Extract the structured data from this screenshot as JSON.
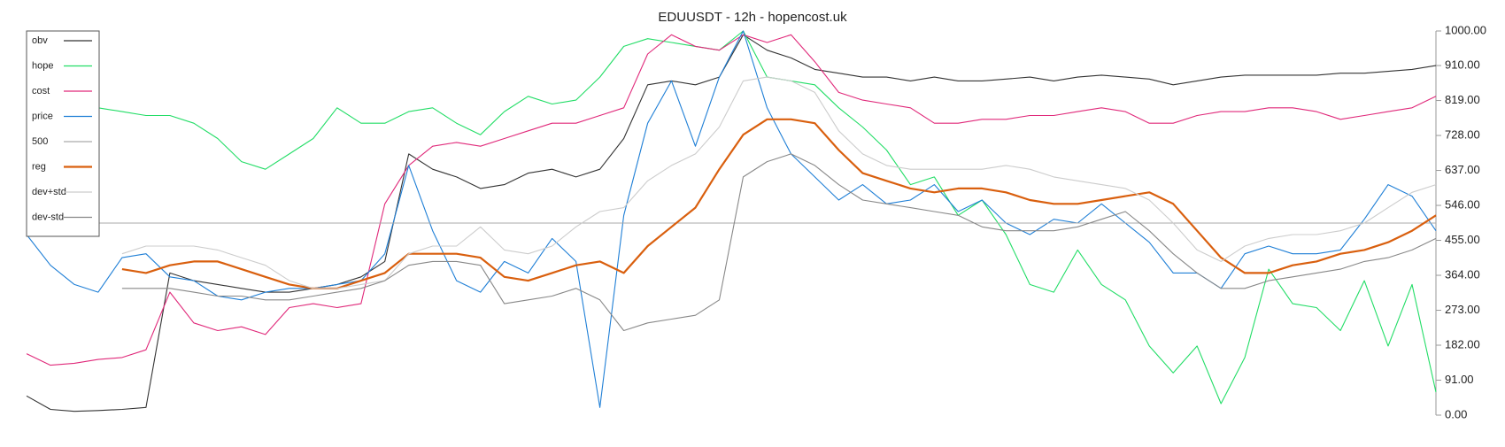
{
  "chart_data": {
    "type": "line",
    "title": "EDUUSDT - 12h - hopencost.uk",
    "ylim": [
      0,
      1000
    ],
    "yticks": [
      {
        "value": 0,
        "label": "0.00"
      },
      {
        "value": 91,
        "label": "91.00"
      },
      {
        "value": 182,
        "label": "182.00"
      },
      {
        "value": 273,
        "label": "273.00"
      },
      {
        "value": 364,
        "label": "364.00"
      },
      {
        "value": 455,
        "label": "455.00"
      },
      {
        "value": 546,
        "label": "546.00"
      },
      {
        "value": 637,
        "label": "637.00"
      },
      {
        "value": 728,
        "label": "728.00"
      },
      {
        "value": 819,
        "label": "819.00"
      },
      {
        "value": 910,
        "label": "910.00"
      },
      {
        "value": 1000,
        "label": "1000.00"
      }
    ],
    "legend": "upper left",
    "series": [
      {
        "name": "obv",
        "color": "#333333",
        "values": [
          50,
          15,
          10,
          12,
          15,
          20,
          370,
          350,
          340,
          330,
          320,
          320,
          330,
          340,
          360,
          400,
          680,
          640,
          620,
          590,
          600,
          630,
          640,
          620,
          640,
          720,
          860,
          870,
          860,
          880,
          990,
          950,
          930,
          900,
          890,
          880,
          880,
          870,
          880,
          870,
          870,
          875,
          880,
          870,
          880,
          885,
          880,
          875,
          860,
          870,
          880,
          885,
          885,
          885,
          885,
          890,
          890,
          895,
          900,
          910
        ]
      },
      {
        "name": "hope",
        "color": "#22dd66",
        "values": [
          null,
          null,
          null,
          800,
          790,
          780,
          780,
          760,
          720,
          660,
          640,
          680,
          720,
          800,
          760,
          760,
          790,
          800,
          760,
          730,
          790,
          830,
          810,
          820,
          880,
          960,
          980,
          970,
          960,
          950,
          1000,
          880,
          870,
          860,
          800,
          750,
          690,
          600,
          620,
          520,
          560,
          470,
          340,
          320,
          430,
          340,
          300,
          180,
          110,
          180,
          30,
          150,
          380,
          290,
          280,
          220,
          350,
          180,
          340,
          60
        ]
      },
      {
        "name": "cost",
        "color": "#e0297a",
        "values": [
          160,
          130,
          135,
          145,
          150,
          170,
          320,
          240,
          220,
          230,
          210,
          280,
          290,
          280,
          290,
          550,
          650,
          700,
          710,
          700,
          720,
          740,
          760,
          760,
          780,
          800,
          940,
          990,
          960,
          950,
          990,
          970,
          990,
          920,
          840,
          820,
          810,
          800,
          760,
          760,
          770,
          770,
          780,
          780,
          790,
          800,
          790,
          760,
          760,
          780,
          790,
          790,
          800,
          800,
          790,
          770,
          780,
          790,
          800,
          830
        ]
      },
      {
        "name": "price",
        "color": "#1f7fd6",
        "values": [
          470,
          390,
          340,
          320,
          410,
          420,
          360,
          350,
          310,
          300,
          320,
          330,
          330,
          340,
          350,
          420,
          650,
          480,
          350,
          320,
          400,
          370,
          460,
          400,
          20,
          520,
          760,
          870,
          700,
          880,
          1000,
          800,
          680,
          620,
          560,
          600,
          550,
          560,
          600,
          530,
          560,
          500,
          470,
          510,
          500,
          550,
          500,
          450,
          370,
          370,
          330,
          420,
          440,
          420,
          420,
          430,
          510,
          600,
          570,
          480
        ]
      },
      {
        "name": "500",
        "color": "#aaaaaa",
        "values": [
          500,
          500,
          500,
          500,
          500,
          500,
          500,
          500,
          500,
          500,
          500,
          500,
          500,
          500,
          500,
          500,
          500,
          500,
          500,
          500,
          500,
          500,
          500,
          500,
          500,
          500,
          500,
          500,
          500,
          500,
          500,
          500,
          500,
          500,
          500,
          500,
          500,
          500,
          500,
          500,
          500,
          500,
          500,
          500,
          500,
          500,
          500,
          500,
          500,
          500,
          500,
          500,
          500,
          500,
          500,
          500,
          500,
          500,
          500,
          500
        ]
      },
      {
        "name": "reg",
        "color": "#d95f0e",
        "values": [
          null,
          null,
          null,
          null,
          380,
          370,
          390,
          400,
          400,
          380,
          360,
          340,
          330,
          330,
          350,
          370,
          420,
          420,
          420,
          410,
          360,
          350,
          370,
          390,
          400,
          370,
          440,
          490,
          540,
          640,
          730,
          770,
          770,
          760,
          690,
          630,
          610,
          590,
          580,
          590,
          590,
          580,
          560,
          550,
          550,
          560,
          570,
          580,
          550,
          480,
          410,
          370,
          370,
          390,
          400,
          420,
          430,
          450,
          480,
          520
        ]
      },
      {
        "name": "dev+std",
        "color": "#cccccc",
        "values": [
          null,
          null,
          null,
          null,
          420,
          440,
          440,
          440,
          430,
          410,
          390,
          350,
          330,
          330,
          340,
          350,
          420,
          440,
          440,
          490,
          430,
          420,
          440,
          490,
          530,
          540,
          610,
          650,
          680,
          750,
          870,
          880,
          870,
          840,
          740,
          680,
          650,
          640,
          640,
          640,
          640,
          650,
          640,
          620,
          610,
          600,
          590,
          560,
          500,
          430,
          400,
          440,
          460,
          470,
          470,
          480,
          500,
          540,
          580,
          600
        ]
      },
      {
        "name": "dev-std",
        "color": "#888888",
        "values": [
          null,
          null,
          null,
          null,
          330,
          330,
          330,
          320,
          310,
          310,
          300,
          300,
          310,
          320,
          330,
          350,
          390,
          400,
          400,
          390,
          290,
          300,
          310,
          330,
          300,
          220,
          240,
          250,
          260,
          300,
          620,
          660,
          680,
          650,
          600,
          560,
          550,
          540,
          530,
          520,
          490,
          480,
          480,
          480,
          490,
          510,
          530,
          480,
          420,
          370,
          330,
          330,
          350,
          360,
          370,
          380,
          400,
          410,
          430,
          460
        ]
      }
    ]
  }
}
